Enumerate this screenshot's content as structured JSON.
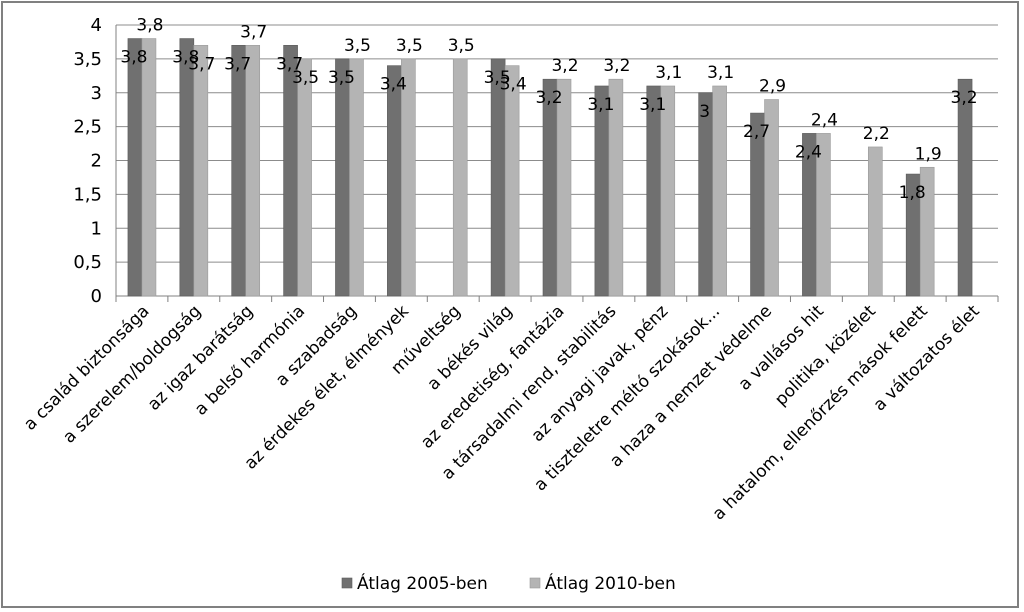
{
  "chart_data": {
    "type": "bar",
    "categories": [
      "a család biztonsága",
      "a szerelem/boldogság",
      "az igaz barátság",
      "a belső harmónia",
      "a szabadság",
      "az érdekes élet, élmények",
      "műveltség",
      "a békés világ",
      "az eredetiség, fantázia",
      "a társadalmi rend, stabilitás",
      "az anyagi javak, pénz",
      "a tiszteletre méltó szokások...",
      "a haza a nemzet védelme",
      "a vallásos hit",
      "politika, közélet",
      "a hatalom, ellenőrzés mások felett",
      "a változatos élet"
    ],
    "series": [
      {
        "name": "Átlag 2005-ben",
        "color": "#707070",
        "values": [
          3.8,
          3.8,
          3.7,
          3.7,
          3.5,
          3.4,
          null,
          3.5,
          3.2,
          3.1,
          3.1,
          3.0,
          2.7,
          2.4,
          null,
          1.8,
          3.2
        ],
        "labels": [
          "3,8",
          "3,8",
          "3,7",
          "3,7",
          "3,5",
          "3,4",
          "",
          "3,5",
          "3,2",
          "3,1",
          "3,1",
          "3",
          "2,7",
          "2,4",
          "",
          "1,8",
          "3,2"
        ]
      },
      {
        "name": "Átlag 2010-ben",
        "color": "#b4b4b4",
        "values": [
          3.8,
          3.7,
          3.7,
          3.5,
          3.5,
          3.5,
          3.5,
          3.4,
          3.2,
          3.2,
          3.1,
          3.1,
          2.9,
          2.4,
          2.2,
          1.9,
          null
        ],
        "labels": [
          "3,8",
          "3,7",
          "3,7",
          "3,5",
          "3,5",
          "3,5",
          "3,5",
          "3,4",
          "3,2",
          "3,2",
          "3,1",
          "3,1",
          "2,9",
          "2,4",
          "2,2",
          "1,9",
          ""
        ]
      }
    ],
    "ylim": [
      0,
      4
    ],
    "yticks": [
      {
        "value": 0,
        "label": "0"
      },
      {
        "value": 0.5,
        "label": "0,5"
      },
      {
        "value": 1,
        "label": "1"
      },
      {
        "value": 1.5,
        "label": "1,5"
      },
      {
        "value": 2,
        "label": "2"
      },
      {
        "value": 2.5,
        "label": "2,5"
      },
      {
        "value": 3,
        "label": "3"
      },
      {
        "value": 3.5,
        "label": "3,5"
      },
      {
        "value": 4,
        "label": "4"
      }
    ],
    "grid": true,
    "legend": "bottom"
  }
}
